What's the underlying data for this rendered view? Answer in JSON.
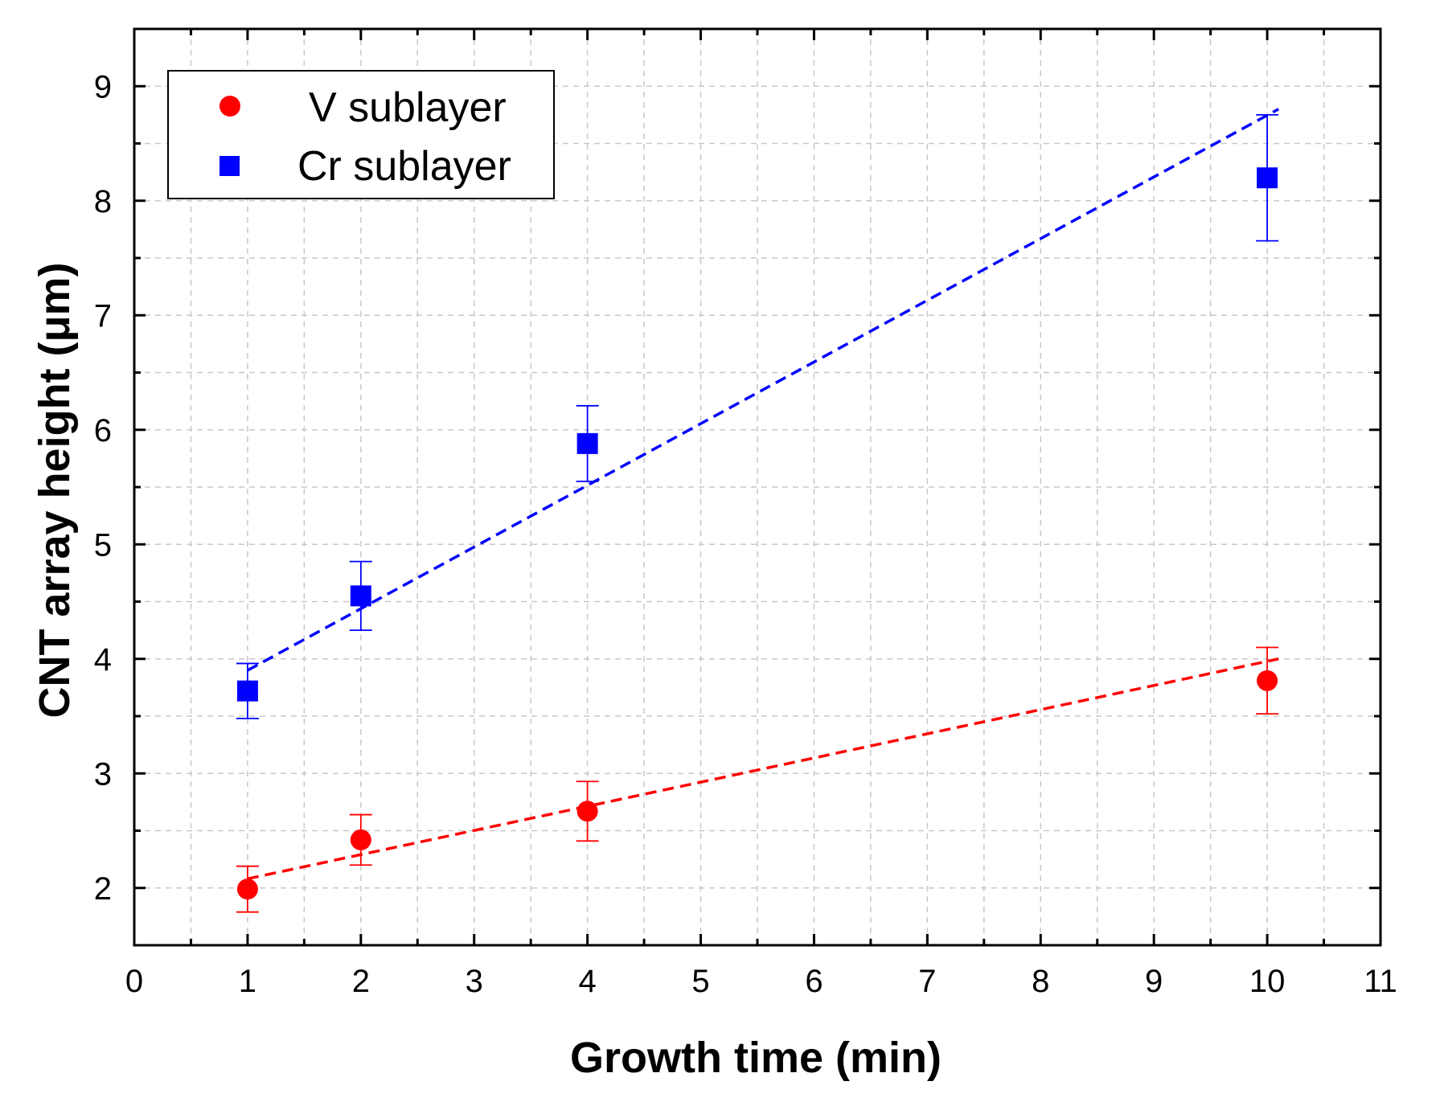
{
  "chart_data": {
    "type": "scatter",
    "title": "",
    "xlabel": "Growth time (min)",
    "ylabel": "CNT array height (μm)",
    "xlim": [
      0,
      11
    ],
    "ylim": [
      1.5,
      9.5
    ],
    "xticks": [
      0,
      1,
      2,
      3,
      4,
      5,
      6,
      7,
      8,
      9,
      10,
      11
    ],
    "yticks": [
      2,
      3,
      4,
      5,
      6,
      7,
      8,
      9
    ],
    "grid": true,
    "legend_position": "top-left",
    "series": [
      {
        "name": "V sublayer",
        "marker": "circle",
        "color": "#ff0000",
        "x": [
          1,
          2,
          4,
          10
        ],
        "y": [
          1.99,
          2.42,
          2.67,
          3.81
        ],
        "yerr": [
          0.2,
          0.22,
          0.26,
          0.29
        ],
        "fit": {
          "x": [
            1,
            10.1
          ],
          "y": [
            2.08,
            4.0
          ]
        }
      },
      {
        "name": "Cr sublayer",
        "marker": "square",
        "color": "#0000ff",
        "x": [
          1,
          2,
          4,
          10
        ],
        "y": [
          3.72,
          4.55,
          5.88,
          8.2
        ],
        "yerr": [
          0.24,
          0.3,
          0.33,
          0.55
        ],
        "fit": {
          "x": [
            1,
            10.1
          ],
          "y": [
            3.9,
            8.8
          ]
        }
      }
    ]
  }
}
